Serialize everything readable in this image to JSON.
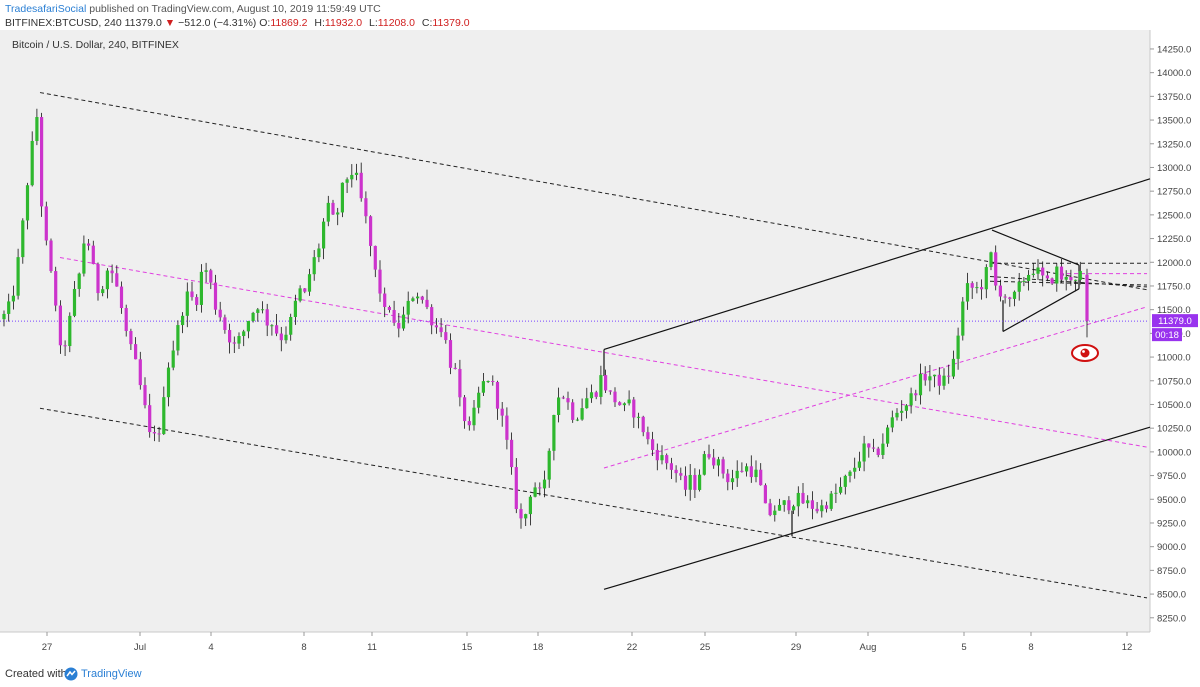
{
  "header": {
    "author": "TradesafariSocial",
    "published": "published on TradingView.com, August 10, 2019 11:59:49 UTC",
    "symbol": "BITFINEX:BTCUSD, 240",
    "price": "11379.0",
    "change": "−512.0 (−4.31%)",
    "o_label": "O:",
    "o_value": "11869.2",
    "h_label": "H:",
    "h_value": "11932.0",
    "l_label": "L:",
    "l_value": "11208.0",
    "c_label": "C:",
    "c_value": "11379.0"
  },
  "footer": {
    "created": "Created with",
    "brand": "TradingView"
  },
  "colors": {
    "up": "#2eb82e",
    "down": "#cc33cc",
    "plot_bg": "#efefef",
    "price_tag": "#9933ee",
    "pink_line": "#e040e0",
    "alert": "#d01010"
  },
  "chart_data": {
    "type": "candlestick",
    "title": "Bitcoin / U.S. Dollar, 240, BITFINEX",
    "ylim": [
      8100,
      14450
    ],
    "y_ticks": [
      "14250.0",
      "14000.0",
      "13750.0",
      "13500.0",
      "13250.0",
      "13000.0",
      "12750.0",
      "12500.0",
      "12250.0",
      "12000.0",
      "11750.0",
      "11500.0",
      "11250.0",
      "11000.0",
      "10750.0",
      "10500.0",
      "10250.0",
      "10000.0",
      "9750.0",
      "9500.0",
      "9250.0",
      "9000.0",
      "8750.0",
      "8500.0",
      "8250.0"
    ],
    "x_ticks": [
      "27",
      "Jul",
      "4",
      "8",
      "11",
      "15",
      "18",
      "22",
      "25",
      "29",
      "Aug",
      "5",
      "8",
      "12"
    ],
    "last_price": {
      "value": 11379,
      "label": "11379.0",
      "countdown": "00:18"
    },
    "price_path": [
      [
        0,
        11400
      ],
      [
        6,
        11450
      ],
      [
        12,
        11600
      ],
      [
        18,
        12000
      ],
      [
        24,
        12500
      ],
      [
        28,
        12900
      ],
      [
        32,
        13200
      ],
      [
        36,
        13750
      ],
      [
        40,
        12800
      ],
      [
        44,
        12350
      ],
      [
        48,
        12050
      ],
      [
        52,
        11800
      ],
      [
        56,
        11550
      ],
      [
        60,
        11050
      ],
      [
        65,
        11150
      ],
      [
        70,
        11400
      ],
      [
        75,
        11700
      ],
      [
        80,
        11900
      ],
      [
        85,
        12300
      ],
      [
        90,
        12150
      ],
      [
        95,
        11800
      ],
      [
        100,
        11650
      ],
      [
        105,
        11900
      ],
      [
        110,
        11950
      ],
      [
        115,
        11800
      ],
      [
        120,
        11600
      ],
      [
        125,
        11300
      ],
      [
        130,
        11100
      ],
      [
        135,
        10950
      ],
      [
        140,
        10700
      ],
      [
        145,
        10450
      ],
      [
        150,
        10150
      ],
      [
        155,
        10250
      ],
      [
        158,
        10000
      ],
      [
        162,
        10500
      ],
      [
        166,
        10800
      ],
      [
        170,
        11000
      ],
      [
        175,
        11150
      ],
      [
        180,
        11400
      ],
      [
        185,
        11600
      ],
      [
        190,
        11700
      ],
      [
        195,
        11500
      ],
      [
        200,
        11850
      ],
      [
        205,
        11950
      ],
      [
        210,
        11800
      ],
      [
        215,
        11550
      ],
      [
        220,
        11450
      ],
      [
        225,
        11300
      ],
      [
        230,
        11200
      ],
      [
        235,
        11100
      ],
      [
        240,
        11200
      ],
      [
        245,
        11300
      ],
      [
        250,
        11450
      ],
      [
        255,
        11500
      ],
      [
        260,
        11600
      ],
      [
        265,
        11350
      ],
      [
        270,
        11400
      ],
      [
        275,
        11300
      ],
      [
        280,
        11200
      ],
      [
        285,
        11250
      ],
      [
        290,
        11350
      ],
      [
        295,
        11550
      ],
      [
        300,
        11700
      ],
      [
        305,
        11650
      ],
      [
        310,
        11900
      ],
      [
        315,
        12050
      ],
      [
        320,
        12200
      ],
      [
        325,
        12500
      ],
      [
        330,
        12600
      ],
      [
        335,
        12350
      ],
      [
        340,
        12700
      ],
      [
        345,
        12850
      ],
      [
        350,
        12950
      ],
      [
        355,
        12950
      ],
      [
        360,
        12700
      ],
      [
        365,
        12500
      ],
      [
        370,
        12200
      ],
      [
        375,
        11900
      ],
      [
        380,
        11700
      ],
      [
        385,
        11450
      ],
      [
        390,
        11550
      ],
      [
        395,
        11250
      ],
      [
        400,
        11350
      ],
      [
        405,
        11450
      ],
      [
        410,
        11600
      ],
      [
        415,
        11700
      ],
      [
        420,
        11650
      ],
      [
        425,
        11550
      ],
      [
        430,
        11450
      ],
      [
        435,
        11300
      ],
      [
        440,
        11350
      ],
      [
        445,
        11200
      ],
      [
        450,
        10950
      ],
      [
        455,
        10850
      ],
      [
        460,
        10500
      ],
      [
        465,
        10350
      ],
      [
        470,
        10200
      ],
      [
        475,
        10450
      ],
      [
        480,
        10650
      ],
      [
        485,
        10750
      ],
      [
        490,
        10800
      ],
      [
        495,
        10600
      ],
      [
        500,
        10450
      ],
      [
        505,
        10200
      ],
      [
        510,
        9900
      ],
      [
        515,
        9500
      ],
      [
        520,
        9300
      ],
      [
        524,
        9200
      ],
      [
        528,
        9550
      ],
      [
        532,
        9600
      ],
      [
        536,
        9650
      ],
      [
        540,
        9550
      ],
      [
        545,
        9650
      ],
      [
        550,
        10100
      ],
      [
        555,
        10550
      ],
      [
        560,
        10600
      ],
      [
        565,
        10600
      ],
      [
        570,
        10450
      ],
      [
        575,
        10350
      ],
      [
        580,
        10450
      ],
      [
        585,
        10550
      ],
      [
        590,
        10600
      ],
      [
        595,
        10600
      ],
      [
        600,
        10800
      ],
      [
        605,
        10700
      ],
      [
        610,
        10600
      ],
      [
        615,
        10550
      ],
      [
        620,
        10500
      ],
      [
        625,
        10450
      ],
      [
        630,
        10500
      ],
      [
        635,
        10400
      ],
      [
        640,
        10300
      ],
      [
        645,
        10200
      ],
      [
        650,
        10050
      ],
      [
        655,
        10000
      ],
      [
        660,
        9950
      ],
      [
        665,
        9900
      ],
      [
        670,
        9850
      ],
      [
        675,
        9800
      ],
      [
        680,
        9700
      ],
      [
        685,
        9600
      ],
      [
        690,
        9700
      ],
      [
        695,
        9650
      ],
      [
        700,
        9800
      ],
      [
        705,
        9950
      ],
      [
        710,
        10000
      ],
      [
        715,
        9900
      ],
      [
        720,
        9850
      ],
      [
        725,
        9750
      ],
      [
        730,
        9700
      ],
      [
        735,
        9750
      ],
      [
        740,
        9800
      ],
      [
        745,
        9850
      ],
      [
        750,
        9800
      ],
      [
        755,
        9800
      ],
      [
        760,
        9650
      ],
      [
        765,
        9400
      ],
      [
        770,
        9350
      ],
      [
        775,
        9400
      ],
      [
        780,
        9400
      ],
      [
        785,
        9450
      ],
      [
        790,
        9450
      ],
      [
        795,
        9500
      ],
      [
        800,
        9500
      ],
      [
        805,
        9450
      ],
      [
        810,
        9450
      ],
      [
        815,
        9400
      ],
      [
        820,
        9400
      ],
      [
        825,
        9450
      ],
      [
        830,
        9500
      ],
      [
        835,
        9550
      ],
      [
        840,
        9600
      ],
      [
        845,
        9700
      ],
      [
        850,
        9750
      ],
      [
        855,
        9850
      ],
      [
        860,
        9950
      ],
      [
        865,
        10050
      ],
      [
        870,
        10000
      ],
      [
        875,
        9950
      ],
      [
        880,
        10050
      ],
      [
        885,
        10150
      ],
      [
        890,
        10300
      ],
      [
        895,
        10400
      ],
      [
        900,
        10450
      ],
      [
        905,
        10500
      ],
      [
        910,
        10550
      ],
      [
        915,
        10650
      ],
      [
        920,
        10750
      ],
      [
        925,
        10800
      ],
      [
        930,
        10800
      ],
      [
        935,
        10750
      ],
      [
        940,
        10750
      ],
      [
        945,
        10750
      ],
      [
        950,
        10850
      ],
      [
        955,
        11000
      ],
      [
        960,
        11400
      ],
      [
        965,
        11700
      ],
      [
        970,
        11750
      ],
      [
        975,
        11700
      ],
      [
        980,
        11750
      ],
      [
        985,
        11800
      ],
      [
        990,
        12150
      ],
      [
        995,
        11750
      ],
      [
        1000,
        11700
      ],
      [
        1005,
        11650
      ],
      [
        1010,
        11550
      ],
      [
        1015,
        11650
      ],
      [
        1020,
        11750
      ],
      [
        1025,
        11850
      ],
      [
        1030,
        11900
      ],
      [
        1035,
        11950
      ],
      [
        1040,
        11850
      ],
      [
        1045,
        11800
      ],
      [
        1050,
        11750
      ],
      [
        1055,
        11950
      ],
      [
        1060,
        11850
      ],
      [
        1065,
        11800
      ],
      [
        1070,
        11850
      ],
      [
        1075,
        11850
      ],
      [
        1080,
        11880
      ],
      [
        1083,
        11860
      ],
      [
        1087,
        11379
      ]
    ],
    "lines": [
      {
        "kind": "dashed-black",
        "from": [
          40,
          13790
        ],
        "to": [
          1147,
          11710
        ]
      },
      {
        "kind": "dashed-black",
        "from": [
          40,
          10460
        ],
        "to": [
          1147,
          8460
        ]
      },
      {
        "kind": "dashed-black",
        "from": [
          990,
          11990
        ],
        "to": [
          1147,
          11990
        ]
      },
      {
        "kind": "dashed-black",
        "from": [
          990,
          11800
        ],
        "to": [
          1147,
          11760
        ]
      },
      {
        "kind": "dashed-black",
        "from": [
          990,
          11850
        ],
        "to": [
          1147,
          11740
        ]
      },
      {
        "kind": "solid-black",
        "from": [
          604,
          11080
        ],
        "to": [
          1150,
          12880
        ]
      },
      {
        "kind": "solid-black",
        "from": [
          604,
          8550
        ],
        "to": [
          1150,
          10260
        ]
      },
      {
        "kind": "solid-black",
        "from": [
          604,
          11080
        ],
        "to": [
          604,
          10800
        ]
      },
      {
        "kind": "solid-black",
        "from": [
          792,
          9380
        ],
        "to": [
          792,
          9110
        ]
      },
      {
        "kind": "solid-black",
        "from": [
          992,
          12340
        ],
        "to": [
          1079,
          11970
        ]
      },
      {
        "kind": "solid-black",
        "from": [
          1003,
          11270
        ],
        "to": [
          1079,
          11720
        ]
      },
      {
        "kind": "solid-black",
        "from": [
          1003,
          11270
        ],
        "to": [
          1003,
          11600
        ]
      },
      {
        "kind": "solid-black",
        "from": [
          1079,
          11970
        ],
        "to": [
          1079,
          11720
        ]
      },
      {
        "kind": "dashed-pink",
        "from": [
          60,
          12050
        ],
        "to": [
          1147,
          10050
        ]
      },
      {
        "kind": "dashed-pink",
        "from": [
          604,
          9830
        ],
        "to": [
          1147,
          11530
        ]
      },
      {
        "kind": "dashed-pink",
        "from": [
          1060,
          11880
        ],
        "to": [
          1147,
          11880
        ]
      },
      {
        "kind": "dotted-purple",
        "from": [
          0,
          11379
        ],
        "to": [
          1147,
          11379
        ]
      }
    ]
  }
}
